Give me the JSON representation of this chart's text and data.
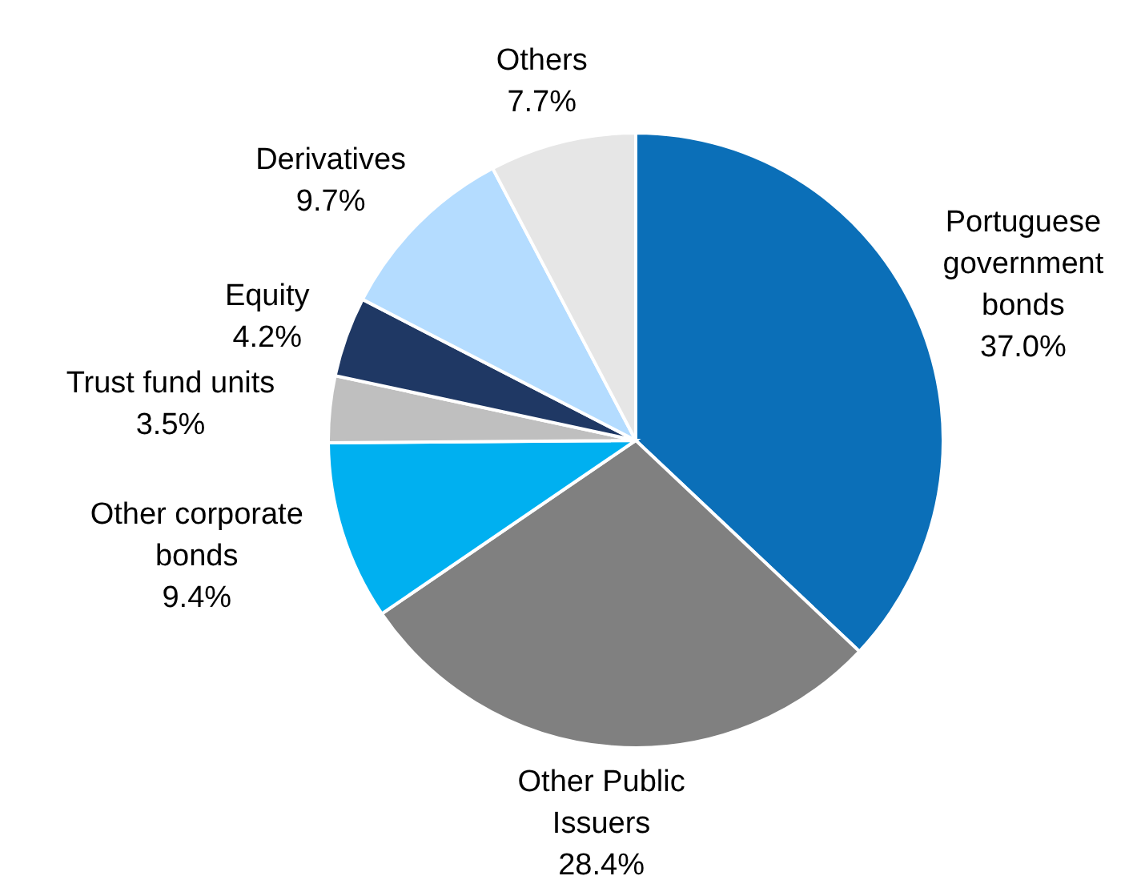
{
  "chart_data": {
    "type": "pie",
    "categories": [
      "Portuguese government bonds",
      "Other Public Issuers",
      "Other corporate bonds",
      "Trust fund units",
      "Equity",
      "Derivatives",
      "Others"
    ],
    "values": [
      37.0,
      28.4,
      9.4,
      3.5,
      4.2,
      9.7,
      7.7
    ],
    "colors": [
      "#0b6fb8",
      "#808080",
      "#00b0f0",
      "#bfbfbf",
      "#1f3864",
      "#b4dcff",
      "#e6e6e6"
    ],
    "value_labels": [
      "37.0%",
      "28.4%",
      "9.4%",
      "3.5%",
      "4.2%",
      "9.7%",
      "7.7%"
    ],
    "legend": false
  }
}
